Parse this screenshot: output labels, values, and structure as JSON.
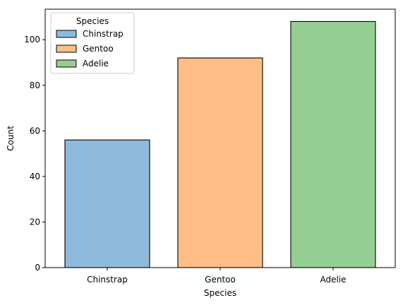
{
  "chart_data": {
    "type": "bar",
    "title": "",
    "xlabel": "Species",
    "ylabel": "Count",
    "categories": [
      "Chinstrap",
      "Gentoo",
      "Adelie"
    ],
    "values": [
      56,
      92,
      108
    ],
    "colors": [
      "#8fbadb",
      "#ffbe87",
      "#96ce93"
    ],
    "edge_color": "#000000",
    "ylim": [
      0,
      113.4
    ],
    "yticks": [
      0,
      20,
      40,
      60,
      80,
      100
    ],
    "grid": false,
    "legend": {
      "title": "Species",
      "placement": "top-left",
      "entries": [
        "Chinstrap",
        "Gentoo",
        "Adelie"
      ]
    }
  }
}
